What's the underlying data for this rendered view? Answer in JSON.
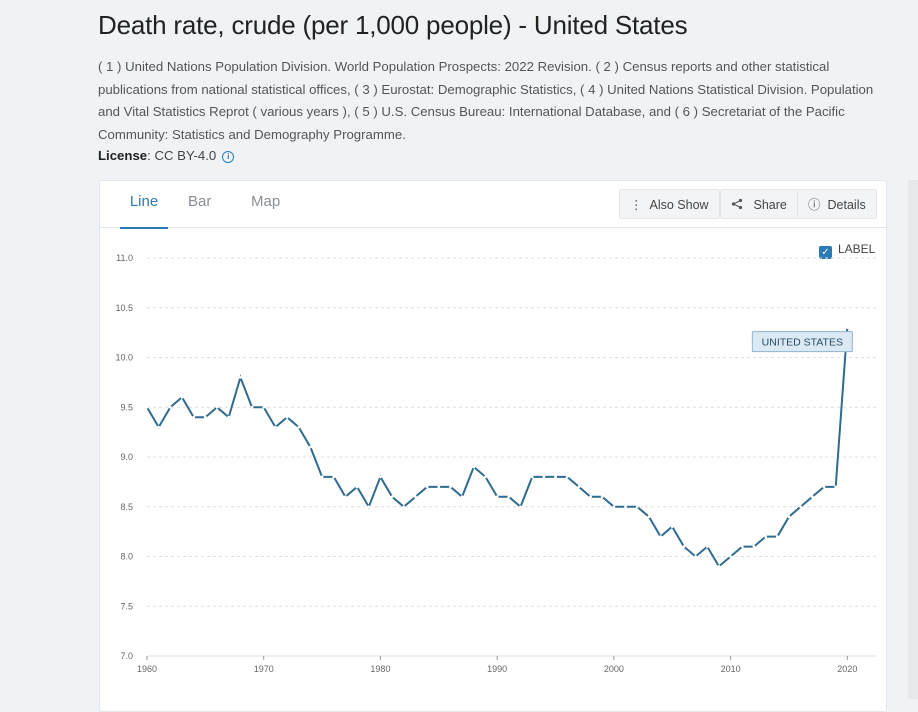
{
  "header": {
    "title": "Death rate, crude (per 1,000 people) - United States",
    "source": "( 1 ) United Nations Population Division. World Population Prospects: 2022 Revision. ( 2 ) Census reports and other statistical publications from national statistical offices, ( 3 ) Eurostat: Demographic Statistics, ( 4 ) United Nations Statistical Division. Population and Vital Statistics Reprot ( various years ), ( 5 ) U.S. Census Bureau: International Database, and ( 6 ) Secretariat of the Pacific Community: Statistics and Demography Programme.",
    "license_label": "License",
    "license_value": ": CC BY-4.0",
    "info_icon": "i"
  },
  "tabs": [
    {
      "label": "Line",
      "active": true
    },
    {
      "label": "Bar",
      "active": false
    },
    {
      "label": "Map",
      "active": false
    }
  ],
  "toolbar": {
    "also_show": "Also Show",
    "share": "Share",
    "details": "Details",
    "also_show_icon": "⋮",
    "details_icon": "ⓘ"
  },
  "label_toggle": {
    "text": "LABEL",
    "checked": true,
    "check_glyph": "✓"
  },
  "colors": {
    "accent": "#2a7ab8",
    "line": "#2f6b8f",
    "label_bg": "#dbe9f5"
  },
  "chart_data": {
    "type": "line",
    "title": "",
    "xlabel": "",
    "ylabel": "",
    "xlim": [
      1960,
      2021
    ],
    "ylim": [
      7.0,
      11.0
    ],
    "x_ticks": [
      1960,
      1970,
      1980,
      1990,
      2000,
      2010,
      2020
    ],
    "y_ticks": [
      7.0,
      7.5,
      8.0,
      8.5,
      9.0,
      9.5,
      10.0,
      10.5,
      11.0
    ],
    "y_tick_labels": [
      "7.0",
      "7.5",
      "8.0",
      "8.5",
      "9.0",
      "9.5",
      "10.0",
      "10.5",
      "11.0"
    ],
    "grid": true,
    "series": [
      {
        "name": "UNITED STATES",
        "x": [
          1960,
          1961,
          1962,
          1963,
          1964,
          1965,
          1966,
          1967,
          1968,
          1969,
          1970,
          1971,
          1972,
          1973,
          1974,
          1975,
          1976,
          1977,
          1978,
          1979,
          1980,
          1981,
          1982,
          1983,
          1984,
          1985,
          1986,
          1987,
          1988,
          1989,
          1990,
          1991,
          1992,
          1993,
          1994,
          1995,
          1996,
          1997,
          1998,
          1999,
          2000,
          2001,
          2002,
          2003,
          2004,
          2005,
          2006,
          2007,
          2008,
          2009,
          2010,
          2011,
          2012,
          2013,
          2014,
          2015,
          2016,
          2017,
          2018,
          2019,
          2020
        ],
        "values": [
          9.5,
          9.3,
          9.5,
          9.6,
          9.4,
          9.4,
          9.5,
          9.4,
          9.8,
          9.5,
          9.5,
          9.3,
          9.4,
          9.3,
          9.1,
          8.8,
          8.8,
          8.6,
          8.7,
          8.5,
          8.8,
          8.6,
          8.5,
          8.6,
          8.7,
          8.7,
          8.7,
          8.6,
          8.9,
          8.8,
          8.6,
          8.6,
          8.5,
          8.8,
          8.8,
          8.8,
          8.8,
          8.7,
          8.6,
          8.6,
          8.5,
          8.5,
          8.5,
          8.4,
          8.2,
          8.3,
          8.1,
          8.0,
          8.1,
          7.9,
          8.0,
          8.1,
          8.1,
          8.2,
          8.2,
          8.4,
          8.5,
          8.6,
          8.7,
          8.7,
          10.3
        ]
      }
    ]
  }
}
